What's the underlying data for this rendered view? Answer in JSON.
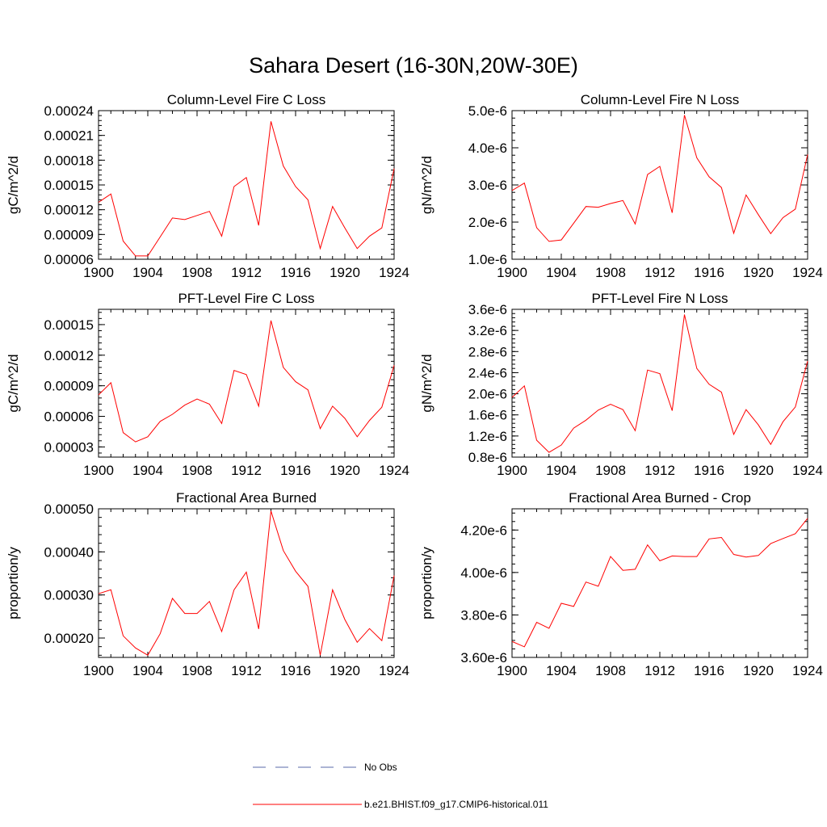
{
  "page": {
    "title": "Sahara Desert (16-30N,20W-30E)"
  },
  "colors": {
    "series": "#ff0000",
    "obs": "#5a6aa8",
    "axis": "#000000"
  },
  "legend": {
    "items": [
      {
        "label": "No Obs",
        "style": "dashed"
      },
      {
        "label": "b.e21.BHIST.f09_g17.CMIP6-historical.011",
        "style": "solid"
      }
    ]
  },
  "chart_data": [
    {
      "type": "line",
      "title": "Column-Level Fire C Loss",
      "ylabel": "gC/m^2/d",
      "xlim": [
        1900,
        1924
      ],
      "ylim": [
        6e-05,
        0.00024
      ],
      "x_ticks": [
        1900,
        1904,
        1908,
        1912,
        1916,
        1920,
        1924
      ],
      "y_ticks": [
        "0.00006",
        "0.00009",
        "0.00012",
        "0.00015",
        "0.00018",
        "0.00021",
        "0.00024"
      ],
      "x": [
        1900,
        1901,
        1902,
        1903,
        1904,
        1905,
        1906,
        1907,
        1908,
        1909,
        1910,
        1911,
        1912,
        1913,
        1914,
        1915,
        1916,
        1917,
        1918,
        1919,
        1920,
        1921,
        1922,
        1923,
        1924
      ],
      "values": [
        0.000129,
        0.000139,
        8.2e-05,
        6.4e-05,
        6.4e-05,
        8.7e-05,
        0.00011,
        0.000108,
        0.000113,
        0.000118,
        8.8e-05,
        0.000148,
        0.000159,
        0.000101,
        0.000227,
        0.000173,
        0.000148,
        0.000132,
        7.3e-05,
        0.000124,
        9.8e-05,
        7.3e-05,
        8.8e-05,
        9.8e-05,
        0.00017
      ]
    },
    {
      "type": "line",
      "title": "Column-Level Fire N Loss",
      "ylabel": "gN/m^2/d",
      "xlim": [
        1900,
        1924
      ],
      "ylim": [
        1e-06,
        5e-06
      ],
      "x_ticks": [
        1900,
        1904,
        1908,
        1912,
        1916,
        1920,
        1924
      ],
      "y_ticks": [
        "1.0e-6",
        "2.0e-6",
        "3.0e-6",
        "4.0e-6",
        "5.0e-6"
      ],
      "x": [
        1900,
        1901,
        1902,
        1903,
        1904,
        1905,
        1906,
        1907,
        1908,
        1909,
        1910,
        1911,
        1912,
        1913,
        1914,
        1915,
        1916,
        1917,
        1918,
        1919,
        1920,
        1921,
        1922,
        1923,
        1924
      ],
      "values": [
        2.85e-06,
        3.05e-06,
        1.85e-06,
        1.48e-06,
        1.52e-06,
        1.97e-06,
        2.42e-06,
        2.4e-06,
        2.5e-06,
        2.58e-06,
        1.95e-06,
        3.28e-06,
        3.5e-06,
        2.25e-06,
        4.88e-06,
        3.73e-06,
        3.22e-06,
        2.93e-06,
        1.7e-06,
        2.73e-06,
        2.2e-06,
        1.69e-06,
        2.12e-06,
        2.35e-06,
        3.82e-06
      ]
    },
    {
      "type": "line",
      "title": "PFT-Level Fire C Loss",
      "ylabel": "gC/m^2/d",
      "xlim": [
        1900,
        1924
      ],
      "ylim": [
        2e-05,
        0.000165
      ],
      "x_ticks": [
        1900,
        1904,
        1908,
        1912,
        1916,
        1920,
        1924
      ],
      "y_ticks": [
        "0.00003",
        "0.00006",
        "0.00009",
        "0.00012",
        "0.00015"
      ],
      "x": [
        1900,
        1901,
        1902,
        1903,
        1904,
        1905,
        1906,
        1907,
        1908,
        1909,
        1910,
        1911,
        1912,
        1913,
        1914,
        1915,
        1916,
        1917,
        1918,
        1919,
        1920,
        1921,
        1922,
        1923,
        1924
      ],
      "values": [
        8.1e-05,
        9.3e-05,
        4.4e-05,
        3.5e-05,
        4e-05,
        5.5e-05,
        6.2e-05,
        7.1e-05,
        7.7e-05,
        7.2e-05,
        5.3e-05,
        0.000105,
        0.000101,
        7e-05,
        0.000154,
        0.000108,
        9.4e-05,
        8.6e-05,
        4.8e-05,
        7e-05,
        5.8e-05,
        4e-05,
        5.6e-05,
        6.9e-05,
        0.00011
      ]
    },
    {
      "type": "line",
      "title": "PFT-Level Fire N Loss",
      "ylabel": "gN/m^2/d",
      "xlim": [
        1900,
        1924
      ],
      "ylim": [
        8e-07,
        3.6e-06
      ],
      "x_ticks": [
        1900,
        1904,
        1908,
        1912,
        1916,
        1920,
        1924
      ],
      "y_ticks": [
        "0.8e-6",
        "1.2e-6",
        "1.6e-6",
        "2.0e-6",
        "2.4e-6",
        "2.8e-6",
        "3.2e-6",
        "3.6e-6"
      ],
      "x": [
        1900,
        1901,
        1902,
        1903,
        1904,
        1905,
        1906,
        1907,
        1908,
        1909,
        1910,
        1911,
        1912,
        1913,
        1914,
        1915,
        1916,
        1917,
        1918,
        1919,
        1920,
        1921,
        1922,
        1923,
        1924
      ],
      "values": [
        1.93e-06,
        2.15e-06,
        1.12e-06,
        8.9e-07,
        1.03e-06,
        1.35e-06,
        1.5e-06,
        1.69e-06,
        1.8e-06,
        1.7e-06,
        1.3e-06,
        2.45e-06,
        2.38e-06,
        1.68e-06,
        3.5e-06,
        2.48e-06,
        2.18e-06,
        2.03e-06,
        1.23e-06,
        1.7e-06,
        1.41e-06,
        1.04e-06,
        1.47e-06,
        1.75e-06,
        2.62e-06
      ]
    },
    {
      "type": "line",
      "title": "Fractional Area Burned",
      "ylabel": "proportion/y",
      "xlim": [
        1900,
        1924
      ],
      "ylim": [
        0.000155,
        0.0005
      ],
      "x_ticks": [
        1900,
        1904,
        1908,
        1912,
        1916,
        1920,
        1924
      ],
      "y_ticks": [
        "0.00020",
        "0.00030",
        "0.00040",
        "0.00050"
      ],
      "x": [
        1900,
        1901,
        1902,
        1903,
        1904,
        1905,
        1906,
        1907,
        1908,
        1909,
        1910,
        1911,
        1912,
        1913,
        1914,
        1915,
        1916,
        1917,
        1918,
        1919,
        1920,
        1921,
        1922,
        1923,
        1924
      ],
      "values": [
        0.000303,
        0.000312,
        0.000205,
        0.000177,
        0.00016,
        0.00021,
        0.000292,
        0.000257,
        0.000257,
        0.000285,
        0.000215,
        0.000312,
        0.000353,
        0.000221,
        0.000495,
        0.000403,
        0.000355,
        0.00032,
        0.00016,
        0.000312,
        0.000243,
        0.00019,
        0.000222,
        0.000194,
        0.000345
      ]
    },
    {
      "type": "line",
      "title": "Fractional Area Burned - Crop",
      "ylabel": "proportion/y",
      "xlim": [
        1900,
        1924
      ],
      "ylim": [
        3.6e-06,
        4.3e-06
      ],
      "x_ticks": [
        1900,
        1904,
        1908,
        1912,
        1916,
        1920,
        1924
      ],
      "y_ticks": [
        "3.60e-6",
        "3.80e-6",
        "4.00e-6",
        "4.20e-6"
      ],
      "x": [
        1900,
        1901,
        1902,
        1903,
        1904,
        1905,
        1906,
        1907,
        1908,
        1909,
        1910,
        1911,
        1912,
        1913,
        1914,
        1915,
        1916,
        1917,
        1918,
        1919,
        1920,
        1921,
        1922,
        1923,
        1924
      ],
      "values": [
        3.675e-06,
        3.65e-06,
        3.765e-06,
        3.737e-06,
        3.855e-06,
        3.84e-06,
        3.955e-06,
        3.935e-06,
        4.075e-06,
        4.01e-06,
        4.015e-06,
        4.13e-06,
        4.055e-06,
        4.078e-06,
        4.075e-06,
        4.075e-06,
        4.158e-06,
        4.165e-06,
        4.085e-06,
        4.073e-06,
        4.08e-06,
        4.136e-06,
        4.16e-06,
        4.183e-06,
        4.255e-06
      ]
    }
  ]
}
